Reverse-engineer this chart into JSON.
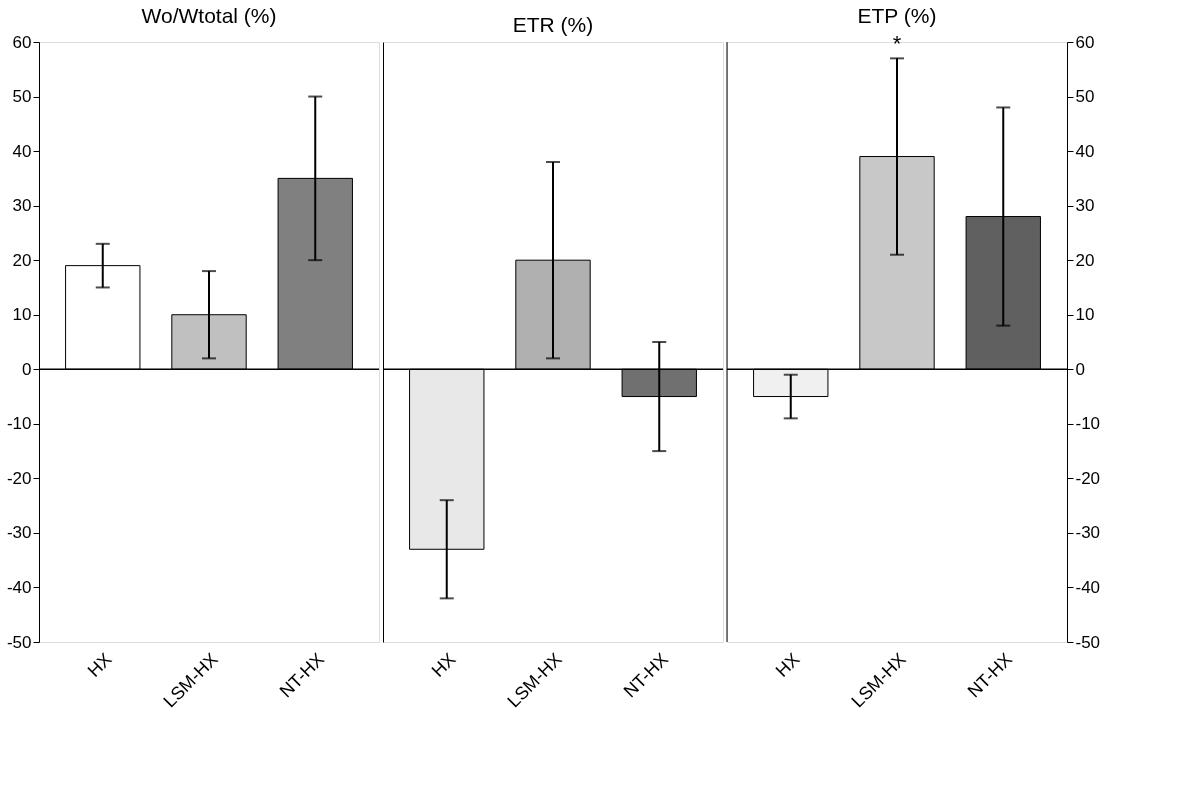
{
  "chart_data": [
    {
      "type": "bar",
      "title": "Wo/Wtotal (%)",
      "categories": [
        "HX",
        "LSM-HX",
        "NT-HX"
      ],
      "values": [
        19,
        10,
        35
      ],
      "errors": [
        [
          15,
          23
        ],
        [
          2,
          18
        ],
        [
          20,
          50
        ]
      ],
      "colors": [
        "#ffffff",
        "#c0c0c0",
        "#808080"
      ],
      "ylim": [
        -50,
        60
      ],
      "yticks": [
        -50,
        -40,
        -30,
        -20,
        -10,
        0,
        10,
        20,
        30,
        40,
        50,
        60
      ]
    },
    {
      "type": "bar",
      "title": "ETR (%)",
      "categories": [
        "HX",
        "LSM-HX",
        "NT-HX"
      ],
      "values": [
        -33,
        20,
        -5
      ],
      "errors": [
        [
          -42,
          -24
        ],
        [
          2,
          38
        ],
        [
          -15,
          5
        ]
      ],
      "colors": [
        "#e8e8e8",
        "#b0b0b0",
        "#707070"
      ],
      "ylim": [
        -50,
        60
      ],
      "yticks": [
        -50,
        -40,
        -30,
        -20,
        -10,
        0,
        10,
        20,
        30,
        40,
        50,
        60
      ],
      "tick_labels": "x"
    },
    {
      "type": "bar",
      "title": "ETP (%)",
      "categories": [
        "HX",
        "LSM-HX",
        "NT-HX"
      ],
      "values": [
        -5,
        39,
        28
      ],
      "errors": [
        [
          -9,
          -1
        ],
        [
          21,
          57
        ],
        [
          8,
          48
        ]
      ],
      "colors": [
        "#f0f0f0",
        "#c8c8c8",
        "#606060"
      ],
      "ylim": [
        -50,
        60
      ],
      "yticks": [
        -50,
        -40,
        -30,
        -20,
        -10,
        0,
        10,
        20,
        30,
        40,
        50,
        60
      ],
      "annotations": [
        {
          "text": "*",
          "x": "LSM-HX",
          "y": 57
        }
      ]
    }
  ]
}
